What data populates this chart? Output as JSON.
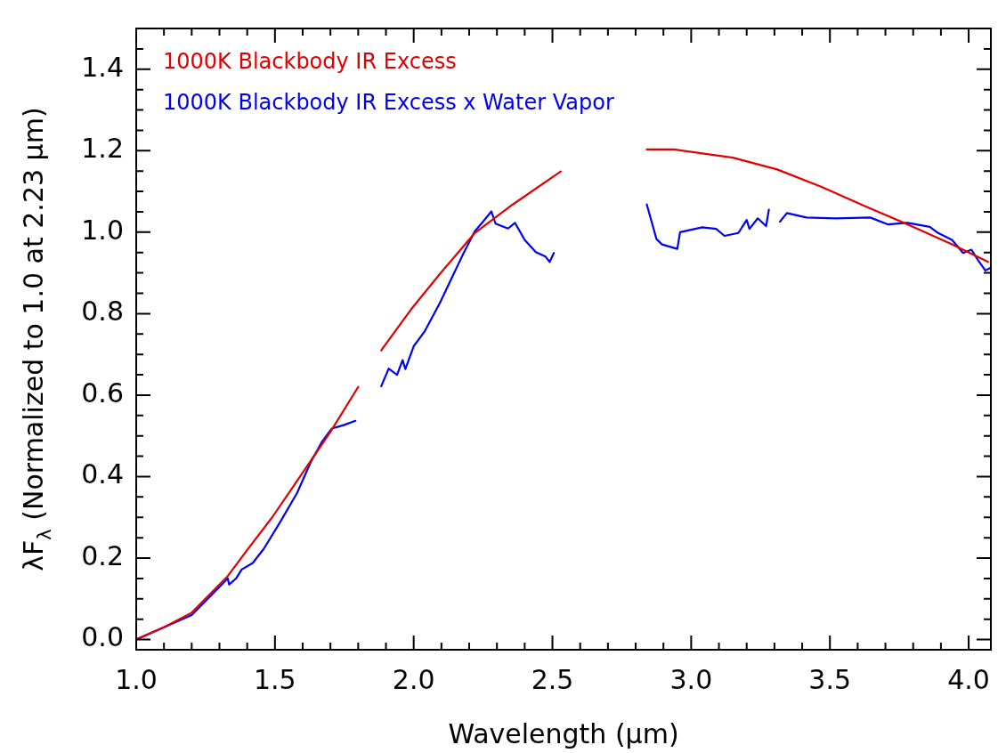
{
  "chart_data": {
    "type": "line",
    "xlabel": "Wavelength (μm)",
    "ylabel": "λF$_{λ}$ (Normalized to 1.0 at 2.23 μm)",
    "xlim": [
      1.0,
      4.08
    ],
    "ylim": [
      -0.025,
      1.5
    ],
    "xticks": [
      {
        "value": 1.0,
        "label": "1.0"
      },
      {
        "value": 1.1,
        "label": null
      },
      {
        "value": 1.2,
        "label": null
      },
      {
        "value": 1.3,
        "label": null
      },
      {
        "value": 1.4,
        "label": null
      },
      1.5,
      {
        "value": 1.6,
        "label": null
      },
      {
        "value": 1.7,
        "label": null
      },
      {
        "value": 1.8,
        "label": null
      },
      {
        "value": 1.9,
        "label": null
      },
      {
        "value": 2.0,
        "label": "2.0"
      },
      {
        "value": 2.1,
        "label": null
      },
      {
        "value": 2.2,
        "label": null
      },
      {
        "value": 2.3,
        "label": null
      },
      {
        "value": 2.4,
        "label": null
      },
      2.5,
      {
        "value": 2.6,
        "label": null
      },
      {
        "value": 2.7,
        "label": null
      },
      {
        "value": 2.8,
        "label": null
      },
      {
        "value": 2.9,
        "label": null
      },
      {
        "value": 3.0,
        "label": "3.0"
      },
      {
        "value": 3.1,
        "label": null
      },
      {
        "value": 3.2,
        "label": null
      },
      {
        "value": 3.3,
        "label": null
      },
      {
        "value": 3.4,
        "label": null
      },
      3.5,
      {
        "value": 3.6,
        "label": null
      },
      {
        "value": 3.7,
        "label": null
      },
      {
        "value": 3.8,
        "label": null
      },
      {
        "value": 3.9,
        "label": null
      },
      {
        "value": 4.0,
        "label": "4.0"
      }
    ],
    "yticks": [
      {
        "value": 0,
        "label": "0.0"
      },
      {
        "value": 0.05,
        "label": null
      },
      {
        "value": 0.1,
        "label": null
      },
      {
        "value": 0.15,
        "label": null
      },
      0.2,
      {
        "value": 0.25,
        "label": null
      },
      {
        "value": 0.3,
        "label": null
      },
      {
        "value": 0.35,
        "label": null
      },
      0.4,
      {
        "value": 0.45,
        "label": null
      },
      {
        "value": 0.5,
        "label": null
      },
      {
        "value": 0.55,
        "label": null
      },
      0.6,
      {
        "value": 0.65,
        "label": null
      },
      {
        "value": 0.7,
        "label": null
      },
      {
        "value": 0.75,
        "label": null
      },
      0.8,
      {
        "value": 0.85,
        "label": null
      },
      {
        "value": 0.9,
        "label": null
      },
      {
        "value": 0.95,
        "label": null
      },
      {
        "value": 1.0,
        "label": "1.0"
      },
      {
        "value": 1.05,
        "label": null
      },
      {
        "value": 1.1,
        "label": null
      },
      {
        "value": 1.15,
        "label": null
      },
      1.2,
      {
        "value": 1.25,
        "label": null
      },
      {
        "value": 1.3,
        "label": null
      },
      {
        "value": 1.35,
        "label": null
      },
      1.4,
      {
        "value": 1.45,
        "label": null
      }
    ],
    "legend": "top left",
    "grid": false,
    "marker": "none",
    "line_style": "solid",
    "series": [
      {
        "name": "1000K Blackbody IR Excess",
        "color": "#e00000",
        "x": [
          1.0,
          1.1,
          1.2,
          1.33,
          1.4,
          1.49,
          1.55,
          1.64,
          1.7,
          1.8,
          1.85,
          1.883,
          1.99,
          2.095,
          2.22,
          2.357,
          2.53,
          2.7,
          2.84,
          2.94,
          3.15,
          3.31,
          3.47,
          3.62,
          3.78,
          3.94,
          4.07
        ],
        "values": [
          0.0,
          0.03,
          0.066,
          0.156,
          0.22,
          0.3,
          0.36,
          0.45,
          0.51,
          0.62,
          null,
          0.71,
          0.81,
          0.898,
          0.998,
          1.068,
          1.149,
          null,
          1.203,
          1.203,
          1.183,
          1.154,
          1.111,
          1.066,
          1.019,
          0.97,
          0.927
        ]
      },
      {
        "name": "1000K Blackbody IR Excess x Water Vapor",
        "color": "#0000f0",
        "x": [
          1.0,
          1.2,
          1.33,
          1.335,
          1.36,
          1.38,
          1.42,
          1.46,
          1.52,
          1.58,
          1.63,
          1.67,
          1.705,
          1.75,
          1.79,
          1.84,
          1.883,
          1.91,
          1.94,
          1.96,
          1.97,
          2.0,
          2.04,
          2.095,
          2.15,
          2.18,
          2.22,
          2.25,
          2.28,
          2.295,
          2.34,
          2.365,
          2.4,
          2.44,
          2.475,
          2.49,
          2.505,
          2.7,
          2.84,
          2.875,
          2.895,
          2.95,
          2.96,
          3.04,
          3.09,
          3.12,
          3.17,
          3.2,
          3.21,
          3.24,
          3.27,
          3.28,
          3.3,
          3.32,
          3.345,
          3.415,
          3.52,
          3.645,
          3.71,
          3.78,
          3.86,
          3.89,
          3.94,
          3.98,
          4.01,
          4.035,
          4.06,
          4.08
        ],
        "values": [
          0.0,
          0.06,
          0.15,
          0.135,
          0.15,
          0.172,
          0.188,
          0.223,
          0.29,
          0.36,
          0.437,
          0.486,
          0.518,
          0.527,
          0.537,
          null,
          0.622,
          0.665,
          0.65,
          0.686,
          0.664,
          0.72,
          0.757,
          0.827,
          0.906,
          0.949,
          1.002,
          1.026,
          1.051,
          1.021,
          1.009,
          1.023,
          0.981,
          0.951,
          0.94,
          0.927,
          0.949,
          null,
          1.068,
          0.983,
          0.97,
          0.959,
          1.0,
          1.012,
          1.008,
          0.991,
          0.998,
          1.03,
          1.008,
          1.034,
          1.015,
          1.055,
          null,
          1.026,
          1.047,
          1.036,
          1.034,
          1.036,
          1.019,
          1.023,
          1.013,
          0.998,
          0.981,
          0.949,
          0.957,
          0.93,
          0.906,
          0.913
        ]
      }
    ]
  }
}
